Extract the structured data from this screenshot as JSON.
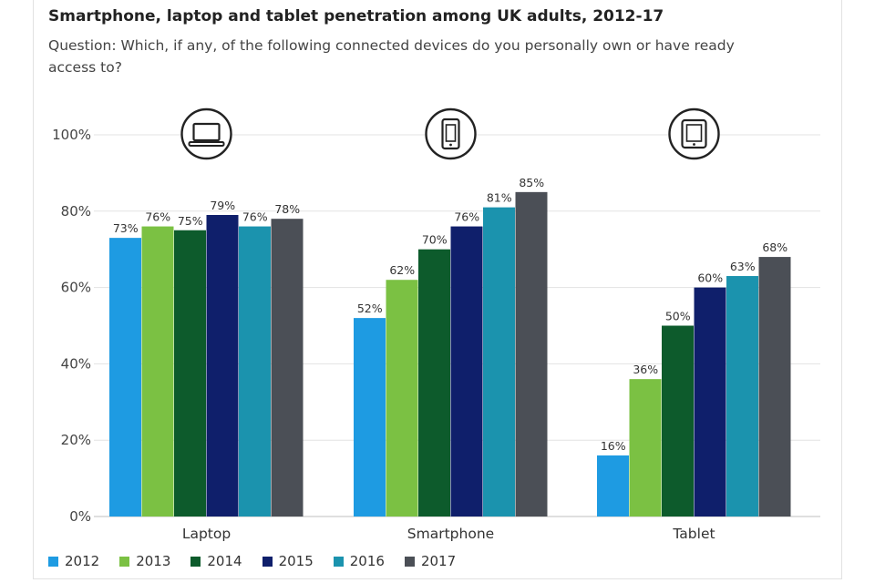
{
  "title": "Smartphone, laptop and tablet penetration among UK adults, 2012-17",
  "subtitle": "Question: Which, if any, of the following connected devices do you personally own or have ready access to?",
  "chart_data": {
    "type": "bar",
    "categories": [
      "Laptop",
      "Smartphone",
      "Tablet"
    ],
    "category_icons": [
      "laptop-icon",
      "smartphone-icon",
      "tablet-icon"
    ],
    "series": [
      {
        "name": "2012",
        "color": "#1e9be2",
        "values": [
          73,
          52,
          16
        ]
      },
      {
        "name": "2013",
        "color": "#7bc143",
        "values": [
          76,
          62,
          36
        ]
      },
      {
        "name": "2014",
        "color": "#0d5b2c",
        "values": [
          75,
          70,
          50
        ]
      },
      {
        "name": "2015",
        "color": "#0f1f6b",
        "values": [
          79,
          76,
          60
        ]
      },
      {
        "name": "2016",
        "color": "#1b93ae",
        "values": [
          76,
          81,
          63
        ]
      },
      {
        "name": "2017",
        "color": "#4b4f56",
        "values": [
          78,
          85,
          68
        ]
      }
    ],
    "value_suffix": "%",
    "ylim": [
      0,
      100
    ],
    "yticks": [
      "0%",
      "20%",
      "40%",
      "60%",
      "80%",
      "100%"
    ],
    "ytick_values": [
      0,
      20,
      40,
      60,
      80,
      100
    ],
    "grid": true,
    "legend": "bottom-left"
  }
}
